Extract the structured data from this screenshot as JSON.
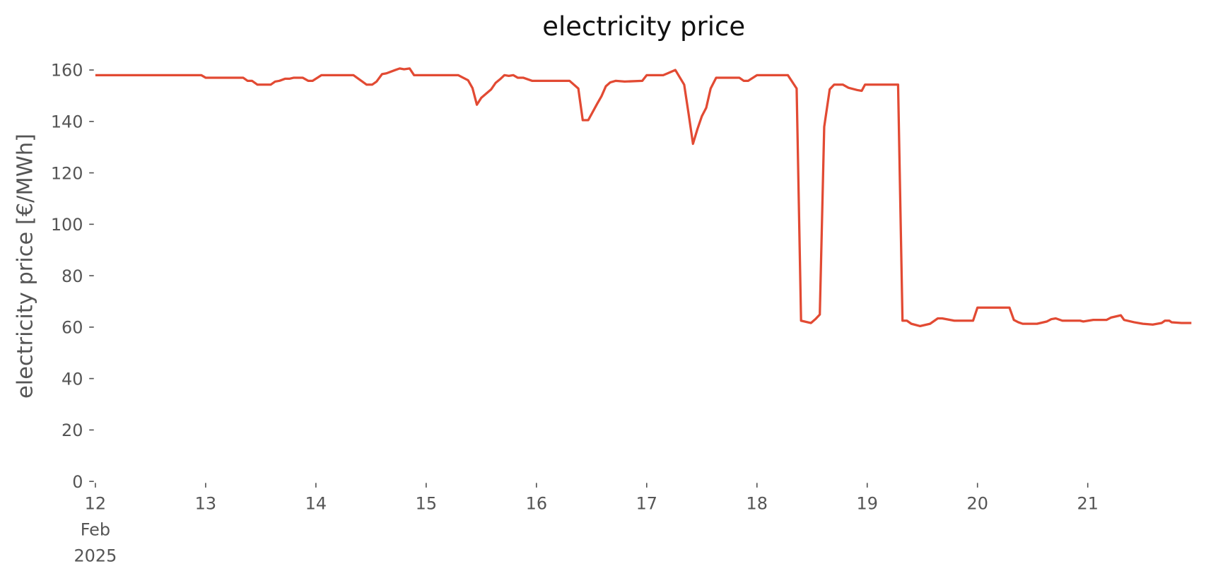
{
  "chart_data": {
    "type": "line",
    "title": "electricity price",
    "ylabel": "electricity price [€/MWh]",
    "color": "#e24a33",
    "x": [
      12.0,
      12.96,
      13.0,
      13.34,
      13.38,
      13.42,
      13.47,
      13.59,
      13.63,
      13.67,
      13.72,
      13.76,
      13.8,
      13.88,
      13.93,
      13.97,
      14.05,
      14.34,
      14.46,
      14.51,
      14.55,
      14.6,
      14.64,
      14.72,
      14.76,
      14.8,
      14.85,
      14.89,
      15.29,
      15.38,
      15.42,
      15.46,
      15.5,
      15.59,
      15.63,
      15.67,
      15.71,
      15.75,
      15.79,
      15.83,
      15.88,
      15.96,
      16.3,
      16.38,
      16.42,
      16.47,
      16.55,
      16.59,
      16.63,
      16.67,
      16.72,
      16.8,
      16.96,
      17.0,
      17.15,
      17.19,
      17.26,
      17.34,
      17.38,
      17.42,
      17.46,
      17.5,
      17.54,
      17.58,
      17.63,
      17.84,
      17.88,
      17.92,
      18.0,
      18.28,
      18.36,
      18.4,
      18.49,
      18.53,
      18.57,
      18.61,
      18.66,
      18.7,
      18.78,
      18.83,
      18.91,
      18.95,
      18.98,
      19.28,
      19.32,
      19.36,
      19.4,
      19.48,
      19.57,
      19.64,
      19.68,
      19.79,
      19.96,
      20.0,
      20.29,
      20.33,
      20.37,
      20.41,
      20.54,
      20.63,
      20.67,
      20.71,
      20.77,
      20.93,
      20.96,
      21.05,
      21.17,
      21.21,
      21.3,
      21.33,
      21.42,
      21.5,
      21.59,
      21.67,
      21.7,
      21.74,
      21.76,
      21.85,
      21.94
    ],
    "values": [
      158,
      158,
      157,
      157,
      155.8,
      155.8,
      154.3,
      154.3,
      155.5,
      155.8,
      156.6,
      156.6,
      157,
      157,
      155.8,
      155.8,
      158,
      158,
      154.3,
      154.3,
      155.5,
      158.4,
      158.7,
      160,
      160.6,
      160.3,
      160.6,
      158,
      158,
      156,
      153,
      146.5,
      149.2,
      152.5,
      155,
      156.4,
      158,
      157.7,
      158,
      157,
      157,
      155.8,
      155.8,
      152.8,
      140.5,
      140.5,
      146.8,
      149.8,
      153.7,
      155.2,
      155.8,
      155.5,
      155.8,
      158,
      158,
      158.7,
      160,
      154.3,
      143,
      131.3,
      137,
      142,
      145.3,
      152.8,
      157,
      157,
      155.8,
      155.8,
      158,
      158,
      152.8,
      62.5,
      61.6,
      63.1,
      64.9,
      137.9,
      152.5,
      154.3,
      154.3,
      153.1,
      152.2,
      151.9,
      154.3,
      154.3,
      62.5,
      62.5,
      61.3,
      60.4,
      61.3,
      63.4,
      63.4,
      62.5,
      62.5,
      67.6,
      67.6,
      62.8,
      61.9,
      61.3,
      61.3,
      62.2,
      63.1,
      63.4,
      62.5,
      62.5,
      62.2,
      62.8,
      62.8,
      63.7,
      64.6,
      62.8,
      61.9,
      61.3,
      61,
      61.6,
      62.5,
      62.5,
      61.9,
      61.6,
      61.6
    ],
    "xlim": [
      12,
      21.94
    ],
    "xticks": [
      {
        "value": 12,
        "label": "12\nFeb\n2025"
      },
      13,
      14,
      15,
      16,
      17,
      18,
      19,
      20,
      21
    ],
    "ylim": [
      0,
      160
    ],
    "yticks": [
      0,
      20,
      40,
      60,
      80,
      100,
      120,
      140,
      160
    ],
    "grid": false
  }
}
